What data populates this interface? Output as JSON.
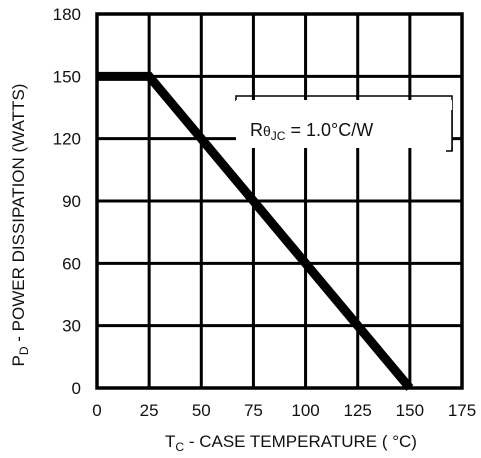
{
  "chart_data": {
    "type": "line",
    "xlabel": {
      "main": "T",
      "sub": "C",
      "rest": " - CASE TEMPERATURE ( °C)"
    },
    "ylabel": {
      "main": "P",
      "sub": "D",
      "rest": " - POWER DISSIPATION (WATTS)"
    },
    "xlim": [
      0,
      175
    ],
    "ylim": [
      0,
      180
    ],
    "x_ticks": [
      0,
      25,
      50,
      75,
      100,
      125,
      150,
      175
    ],
    "y_ticks": [
      0,
      30,
      60,
      90,
      120,
      150,
      180
    ],
    "x_tick_labels": [
      "0",
      "25",
      "50",
      "75",
      "100",
      "125",
      "150",
      "175"
    ],
    "y_tick_labels": [
      "0",
      "30",
      "60",
      "90",
      "120",
      "150",
      "180"
    ],
    "grid": true,
    "series": [
      {
        "x": [
          0,
          25,
          150
        ],
        "y": [
          150,
          150,
          0
        ],
        "color": "#000000"
      }
    ],
    "annotation": {
      "prefix": "R",
      "symbol": "θ",
      "sub": "JC",
      "rest": " = 1.0°C/W"
    }
  }
}
